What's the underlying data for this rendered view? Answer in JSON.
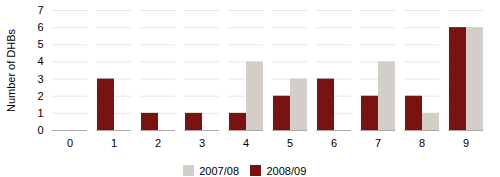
{
  "chart_data": {
    "type": "bar",
    "categories": [
      "0",
      "1",
      "2",
      "3",
      "4",
      "5",
      "6",
      "7",
      "8",
      "9"
    ],
    "series": [
      {
        "name": "2007/08",
        "color": "#d3cfc8",
        "values": [
          0,
          0,
          0,
          0,
          4,
          3,
          0,
          4,
          1,
          6
        ]
      },
      {
        "name": "2008/09",
        "color": "#7b1212",
        "values": [
          0,
          3,
          1,
          1,
          1,
          2,
          3,
          2,
          2,
          6
        ]
      }
    ],
    "ylabel": "Number of DHBs",
    "ylim": [
      0,
      7
    ],
    "yticks": [
      0,
      1,
      2,
      3,
      4,
      5,
      6,
      7
    ],
    "grid": true,
    "legend": "bottom"
  }
}
